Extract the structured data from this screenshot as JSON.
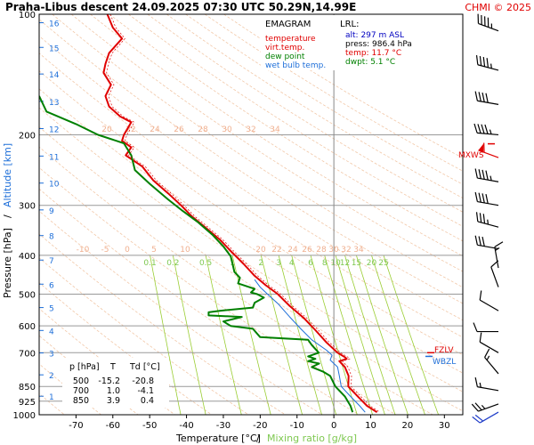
{
  "header": {
    "title": "Praha-Libus   descent   24.09.2025 07:30 UTC  50.29N,14.99E",
    "credit": "CHMI © 2025"
  },
  "legend": {
    "title": "EMAGRAM",
    "items": [
      {
        "label": "temperature",
        "color": "#e00000"
      },
      {
        "label": "virt.temp.",
        "color": "#e00000"
      },
      {
        "label": "dew point",
        "color": "#008000"
      },
      {
        "label": "wet bulb temp.",
        "color": "#1e6fd9"
      }
    ]
  },
  "lrl": {
    "title": "LRL:",
    "lines": [
      {
        "label": "alt: 297 m ASL",
        "color": "#0000c0"
      },
      {
        "label": "press: 986.4 hPa",
        "color": "#000000"
      },
      {
        "label": "temp: 11.7 °C",
        "color": "#e00000"
      },
      {
        "label": "dwpt: 5.1 °C",
        "color": "#008000"
      }
    ]
  },
  "axes": {
    "xlabel": "Temperature [°C]",
    "xlabel2": "Mixing ratio [g/kg]",
    "xsep": "/",
    "ylabel": "Pressure [hPa]",
    "ylabel2": "Altitude [km]",
    "ysep": "/"
  },
  "table": {
    "headers": [
      "p [hPa]",
      "T",
      "Td [°C]"
    ],
    "rows": [
      [
        "500",
        "-15.2",
        "-20.8"
      ],
      [
        "700",
        "1.0",
        "-4.1"
      ],
      [
        "850",
        "3.9",
        "0.4"
      ]
    ]
  },
  "markers": {
    "fzlv": "FZLV",
    "wbzl": "WBZL",
    "mxws": "MXWS"
  },
  "colors": {
    "temperature": "#e00000",
    "dewpoint": "#008000",
    "wetbulb": "#1e6fd9",
    "dry_adiabat": "#f2c8a8",
    "mixing": "#9acd32",
    "grid": "#999999"
  },
  "chart_data": {
    "type": "line",
    "xlim": [
      -80,
      35
    ],
    "ylim": [
      100,
      1000
    ],
    "ylog": true,
    "x_ticks": [
      -70,
      -60,
      -50,
      -40,
      -30,
      -20,
      -10,
      0,
      10,
      20,
      30
    ],
    "y_ticks": [
      100,
      200,
      300,
      400,
      500,
      600,
      700,
      850,
      925,
      1000
    ],
    "altitude_ticks": [
      {
        "km": 16,
        "p": 105
      },
      {
        "km": 15,
        "p": 121
      },
      {
        "km": 14,
        "p": 141
      },
      {
        "km": 13,
        "p": 165
      },
      {
        "km": 12,
        "p": 193
      },
      {
        "km": 11,
        "p": 226
      },
      {
        "km": 10,
        "p": 264
      },
      {
        "km": 9,
        "p": 308
      },
      {
        "km": 8,
        "p": 357
      },
      {
        "km": 7,
        "p": 411
      },
      {
        "km": 6,
        "p": 472
      },
      {
        "km": 5,
        "p": 540
      },
      {
        "km": 4,
        "p": 616
      },
      {
        "km": 3,
        "p": 701
      },
      {
        "km": 2,
        "p": 795
      },
      {
        "km": 1,
        "p": 899
      }
    ],
    "mixing_ratio_row1": {
      "p": 400,
      "labels": [
        "0.1",
        "0.2",
        "0.5",
        "1",
        "2",
        "3",
        "4",
        "6",
        "8",
        "10",
        "12",
        "15",
        "20",
        "25"
      ]
    },
    "theta_labels_top": [
      "20",
      "22",
      "24",
      "26",
      "28",
      "30",
      "32",
      "34"
    ],
    "theta_labels_mid": [
      "-10",
      "-5",
      "0",
      "5",
      "10",
      "20",
      "22",
      "24",
      "26",
      "28",
      "30",
      "32",
      "34"
    ],
    "fzlv_p": 700,
    "wbzl_p": 715,
    "mxws_p": 215,
    "series": [
      {
        "name": "temperature",
        "points": [
          [
            -61.5,
            100
          ],
          [
            -60,
            108
          ],
          [
            -57.5,
            115
          ],
          [
            -61,
            125
          ],
          [
            -62,
            133
          ],
          [
            -62.5,
            140
          ],
          [
            -60.5,
            150
          ],
          [
            -62,
            160
          ],
          [
            -61,
            170
          ],
          [
            -58,
            180
          ],
          [
            -55,
            186
          ],
          [
            -56,
            193
          ],
          [
            -57,
            200
          ],
          [
            -57.5,
            207
          ],
          [
            -55,
            215
          ],
          [
            -56.5,
            225
          ],
          [
            -52,
            240
          ],
          [
            -49,
            260
          ],
          [
            -45,
            280
          ],
          [
            -41.5,
            300
          ],
          [
            -38.5,
            320
          ],
          [
            -35,
            340
          ],
          [
            -31,
            365
          ],
          [
            -28,
            390
          ],
          [
            -24.5,
            420
          ],
          [
            -21.5,
            450
          ],
          [
            -18.5,
            475
          ],
          [
            -15.2,
            500
          ],
          [
            -12,
            535
          ],
          [
            -8,
            575
          ],
          [
            -5,
            615
          ],
          [
            -2,
            660
          ],
          [
            1,
            700
          ],
          [
            3,
            718
          ],
          [
            3.5,
            725
          ],
          [
            1.5,
            735
          ],
          [
            3,
            760
          ],
          [
            4,
            800
          ],
          [
            3.9,
            850
          ],
          [
            6.5,
            900
          ],
          [
            9,
            950
          ],
          [
            11.7,
            986
          ]
        ]
      },
      {
        "name": "dew point",
        "points": [
          [
            -80,
            160
          ],
          [
            -78,
            175
          ],
          [
            -70,
            188
          ],
          [
            -64,
            200
          ],
          [
            -57,
            210
          ],
          [
            -55,
            225
          ],
          [
            -54,
            245
          ],
          [
            -50,
            265
          ],
          [
            -45,
            290
          ],
          [
            -41,
            310
          ],
          [
            -37,
            330
          ],
          [
            -33,
            355
          ],
          [
            -30,
            380
          ],
          [
            -28,
            402
          ],
          [
            -27.5,
            420
          ],
          [
            -27,
            440
          ],
          [
            -25.5,
            455
          ],
          [
            -26,
            470
          ],
          [
            -21.5,
            485
          ],
          [
            -22.5,
            495
          ],
          [
            -20.8,
            500
          ],
          [
            -19,
            510
          ],
          [
            -21.5,
            525
          ],
          [
            -22,
            540
          ],
          [
            -31,
            550
          ],
          [
            -34,
            555
          ],
          [
            -34,
            565
          ],
          [
            -25,
            570
          ],
          [
            -30,
            585
          ],
          [
            -28,
            600
          ],
          [
            -22,
            610
          ],
          [
            -20,
            640
          ],
          [
            -7,
            650
          ],
          [
            -6,
            670
          ],
          [
            -4.1,
            700
          ],
          [
            -7,
            715
          ],
          [
            -5,
            725
          ],
          [
            -7,
            735
          ],
          [
            -4,
            745
          ],
          [
            -6,
            760
          ],
          [
            -3,
            780
          ],
          [
            -1,
            800
          ],
          [
            0.4,
            850
          ],
          [
            3,
            900
          ],
          [
            4.5,
            950
          ],
          [
            5.1,
            986
          ]
        ]
      },
      {
        "name": "wet bulb temp.",
        "points": [
          [
            -21.5,
            460
          ],
          [
            -20,
            480
          ],
          [
            -18,
            500
          ],
          [
            -15,
            530
          ],
          [
            -12,
            570
          ],
          [
            -9,
            610
          ],
          [
            -6,
            650
          ],
          [
            -2,
            690
          ],
          [
            -0.5,
            710
          ],
          [
            -1,
            730
          ],
          [
            1,
            760
          ],
          [
            1.5,
            800
          ],
          [
            2,
            850
          ],
          [
            4.5,
            900
          ],
          [
            7,
            950
          ],
          [
            8.5,
            986
          ]
        ]
      }
    ]
  },
  "winds": [
    {
      "p": 110,
      "dir": 290,
      "spd": 45
    },
    {
      "p": 138,
      "dir": 285,
      "spd": 45
    },
    {
      "p": 168,
      "dir": 280,
      "spd": 40
    },
    {
      "p": 200,
      "dir": 275,
      "spd": 45
    },
    {
      "p": 228,
      "dir": 290,
      "spd": 60
    },
    {
      "p": 262,
      "dir": 280,
      "spd": 45
    },
    {
      "p": 300,
      "dir": 280,
      "spd": 40
    },
    {
      "p": 340,
      "dir": 285,
      "spd": 35
    },
    {
      "p": 385,
      "dir": 280,
      "spd": 30
    },
    {
      "p": 430,
      "dir": 350,
      "spd": 15
    },
    {
      "p": 480,
      "dir": 340,
      "spd": 10
    },
    {
      "p": 550,
      "dir": 300,
      "spd": 10
    },
    {
      "p": 620,
      "dir": 270,
      "spd": 10
    },
    {
      "p": 700,
      "dir": 300,
      "spd": 10
    },
    {
      "p": 790,
      "dir": 320,
      "spd": 15
    },
    {
      "p": 870,
      "dir": 280,
      "spd": 15
    },
    {
      "p": 940,
      "dir": 250,
      "spd": 25
    },
    {
      "p": 985,
      "dir": 240,
      "spd": 20
    }
  ]
}
